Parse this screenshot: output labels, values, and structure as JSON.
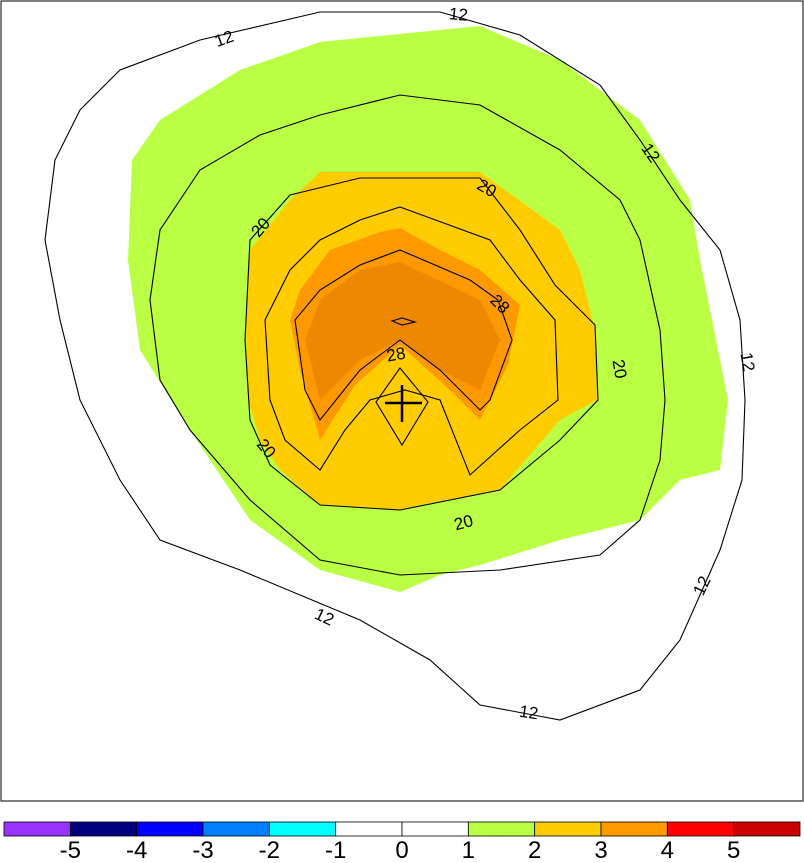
{
  "chart_data": {
    "type": "contour",
    "filled_field": {
      "levels": [
        -5,
        -4,
        -3,
        -2,
        -1,
        0,
        1,
        2,
        3,
        4,
        5
      ],
      "colorbar": {
        "tick_labels": [
          "-5",
          "-4",
          "-3",
          "-2",
          "-1",
          "0",
          "1",
          "2",
          "3",
          "4",
          "5"
        ],
        "colors": [
          "#9933ff",
          "#000080",
          "#0000ff",
          "#007fff",
          "#00ffff",
          "#ffffff",
          "#ffffff",
          "#bbff44",
          "#ffcc00",
          "#ff9900",
          "#ff0000",
          "#cc0000"
        ]
      },
      "regions": [
        {
          "range": "1-2",
          "color": "#bbff44"
        },
        {
          "range": "2-3",
          "color": "#ffcc00"
        },
        {
          "range": "3-4",
          "color": "#ff9900"
        }
      ]
    },
    "contour_lines": {
      "labeled_values": [
        12,
        20,
        28
      ],
      "labels": [
        "12",
        "12",
        "12",
        "12",
        "12",
        "12",
        "12",
        "20",
        "20",
        "20",
        "20",
        "20",
        "28",
        "28"
      ]
    },
    "center_marker": "cross",
    "axes": {
      "ticks_shown": false,
      "grid": false
    }
  }
}
